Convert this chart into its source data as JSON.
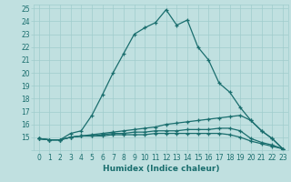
{
  "xlabel": "Humidex (Indice chaleur)",
  "xlim": [
    -0.5,
    23.5
  ],
  "ylim": [
    14,
    25.3
  ],
  "xticks": [
    0,
    1,
    2,
    3,
    4,
    5,
    6,
    7,
    8,
    9,
    10,
    11,
    12,
    13,
    14,
    15,
    16,
    17,
    18,
    19,
    20,
    21,
    22,
    23
  ],
  "yticks": [
    14,
    15,
    16,
    17,
    18,
    19,
    20,
    21,
    22,
    23,
    24,
    25
  ],
  "bg_color": "#c0e0e0",
  "grid_color": "#a0cccc",
  "line_color": "#1a6e6e",
  "line1_y": [
    14.9,
    14.8,
    14.8,
    15.3,
    15.5,
    16.7,
    18.3,
    20.0,
    21.5,
    23.0,
    23.5,
    23.9,
    24.9,
    23.7,
    24.1,
    22.0,
    21.0,
    19.2,
    18.5,
    17.3,
    16.3,
    15.5,
    14.9,
    14.1
  ],
  "line2_y": [
    14.9,
    14.8,
    14.8,
    15.0,
    15.1,
    15.2,
    15.3,
    15.4,
    15.5,
    15.6,
    15.7,
    15.8,
    16.0,
    16.1,
    16.2,
    16.3,
    16.4,
    16.5,
    16.6,
    16.7,
    16.3,
    15.5,
    14.9,
    14.1
  ],
  "line3_y": [
    14.9,
    14.8,
    14.8,
    15.0,
    15.1,
    15.1,
    15.2,
    15.3,
    15.3,
    15.4,
    15.4,
    15.5,
    15.5,
    15.5,
    15.6,
    15.6,
    15.6,
    15.7,
    15.7,
    15.5,
    14.9,
    14.6,
    14.4,
    14.1
  ],
  "line4_y": [
    14.9,
    14.8,
    14.8,
    15.0,
    15.1,
    15.1,
    15.1,
    15.2,
    15.2,
    15.2,
    15.2,
    15.3,
    15.3,
    15.3,
    15.3,
    15.3,
    15.3,
    15.3,
    15.2,
    15.0,
    14.7,
    14.5,
    14.3,
    14.1
  ]
}
